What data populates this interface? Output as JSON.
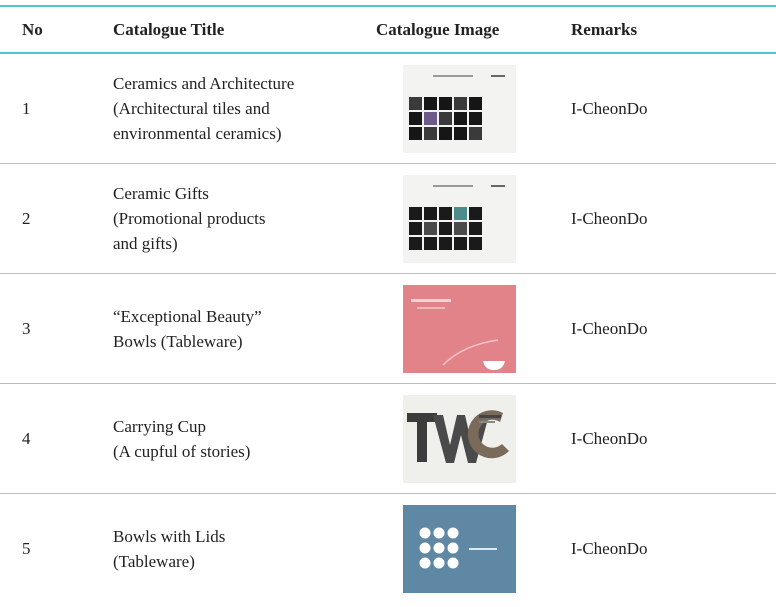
{
  "table": {
    "header": [
      "No",
      "Catalogue Title",
      "Catalogue Image",
      "Remarks"
    ],
    "rows": [
      {
        "no": "1",
        "title_lines": [
          "Ceramics and Architecture",
          "(Architectural tiles and",
          "environmental ceramics)"
        ],
        "remarks": "I-CheonDo"
      },
      {
        "no": "2",
        "title_lines": [
          "Ceramic Gifts",
          "(Promotional products",
          "and gifts)"
        ],
        "remarks": "I-CheonDo"
      },
      {
        "no": "3",
        "title_lines": [
          "“Exceptional Beauty”",
          "Bowls (Tableware)"
        ],
        "remarks": "I-CheonDo"
      },
      {
        "no": "4",
        "title_lines": [
          "Carrying Cup",
          "(A cupful of stories)"
        ],
        "remarks": "I-CheonDo"
      },
      {
        "no": "5",
        "title_lines": [
          "Bowls with Lids",
          "(Tableware)"
        ],
        "remarks": "I-CheonDo"
      }
    ]
  }
}
